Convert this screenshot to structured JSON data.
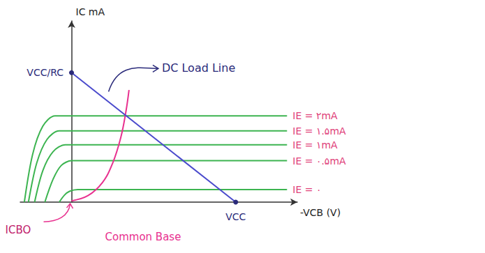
{
  "chart_data": {
    "type": "line",
    "x_label": "-VCB (V)",
    "y_label": "IC mA",
    "xlim": [
      -2.5,
      11
    ],
    "ylim": [
      0,
      4.2
    ],
    "tick_labels": false,
    "grid": false,
    "series": [
      {
        "name": "IE = ۲mA",
        "color": "#3cb450",
        "label_color": "#e0407a",
        "x": [
          -2.3,
          -1.9,
          -1.4,
          -0.8,
          10.5
        ],
        "values": [
          0,
          1.1,
          1.76,
          2.0,
          2.0
        ]
      },
      {
        "name": "IE = ۱.۵mA",
        "color": "#3cb450",
        "label_color": "#e0407a",
        "x": [
          -2.1,
          -1.7,
          -1.2,
          -0.6,
          10.5
        ],
        "values": [
          0,
          0.9,
          1.45,
          1.65,
          1.65
        ]
      },
      {
        "name": "IE = ۱mA",
        "color": "#3cb450",
        "label_color": "#e0407a",
        "x": [
          -1.8,
          -1.4,
          -0.9,
          -0.3,
          10.5
        ],
        "values": [
          0,
          0.73,
          1.17,
          1.33,
          1.33
        ]
      },
      {
        "name": "IE = ۰.۵mA",
        "color": "#3cb450",
        "label_color": "#e0407a",
        "x": [
          -1.3,
          -0.9,
          -0.5,
          0,
          10.5
        ],
        "values": [
          0,
          0.53,
          0.85,
          0.96,
          0.96
        ]
      },
      {
        "name": "IE = ۰",
        "color": "#3cb450",
        "label_color": "#e0407a",
        "x": [
          -0.6,
          -0.35,
          -0.1,
          0.3,
          10.5
        ],
        "values": [
          0,
          0.16,
          0.25,
          0.29,
          0.29
        ]
      }
    ],
    "breakdown_curve": {
      "color": "#e8318f",
      "x": [
        0,
        0.8,
        1.5,
        2.0,
        2.4,
        2.65,
        2.8
      ],
      "values": [
        0.03,
        0.15,
        0.45,
        0.9,
        1.5,
        2.1,
        2.6
      ]
    },
    "load_line": {
      "name": "DC Load Line",
      "color": "#4a4acc",
      "text_color": "#2a2a7a",
      "x": [
        0,
        8
      ],
      "values": [
        3,
        0
      ],
      "point_labels": [
        "VCC/RC",
        "VCC"
      ]
    },
    "annotations": {
      "curve_label": "ICBO",
      "caption": "Common Base",
      "color": "#e8318f"
    }
  }
}
